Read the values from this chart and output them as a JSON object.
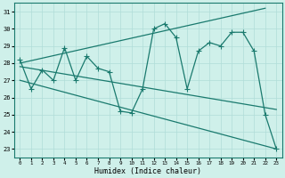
{
  "xlabel": "Humidex (Indice chaleur)",
  "background_color": "#cff0ea",
  "grid_color": "#b0ddd8",
  "line_color": "#1a7a6e",
  "xlim": [
    -0.5,
    23.5
  ],
  "ylim": [
    22.5,
    31.5
  ],
  "yticks": [
    23,
    24,
    25,
    26,
    27,
    28,
    29,
    30,
    31
  ],
  "xticks": [
    0,
    1,
    2,
    3,
    4,
    5,
    6,
    7,
    8,
    9,
    10,
    11,
    12,
    13,
    14,
    15,
    16,
    17,
    18,
    19,
    20,
    21,
    22,
    23
  ],
  "series_main": {
    "x": [
      0,
      1,
      2,
      3,
      4,
      5,
      6,
      7,
      8,
      9,
      10,
      11,
      12,
      13,
      14,
      15,
      16,
      17,
      18,
      19,
      20,
      21,
      22,
      23
    ],
    "y": [
      28.2,
      26.5,
      27.6,
      27.0,
      28.9,
      27.0,
      28.4,
      27.7,
      27.5,
      25.2,
      25.1,
      26.5,
      30.0,
      30.3,
      29.5,
      26.5,
      28.7,
      29.2,
      29.0,
      29.8,
      29.8,
      28.7,
      25.0,
      23.0
    ]
  },
  "series_lower_diag": {
    "x": [
      0,
      23
    ],
    "y": [
      27.0,
      23.0
    ]
  },
  "series_upper_diag": {
    "x": [
      0,
      22
    ],
    "y": [
      28.0,
      31.2
    ]
  },
  "series_mid_flat": {
    "x": [
      0,
      23
    ],
    "y": [
      27.8,
      25.3
    ]
  }
}
